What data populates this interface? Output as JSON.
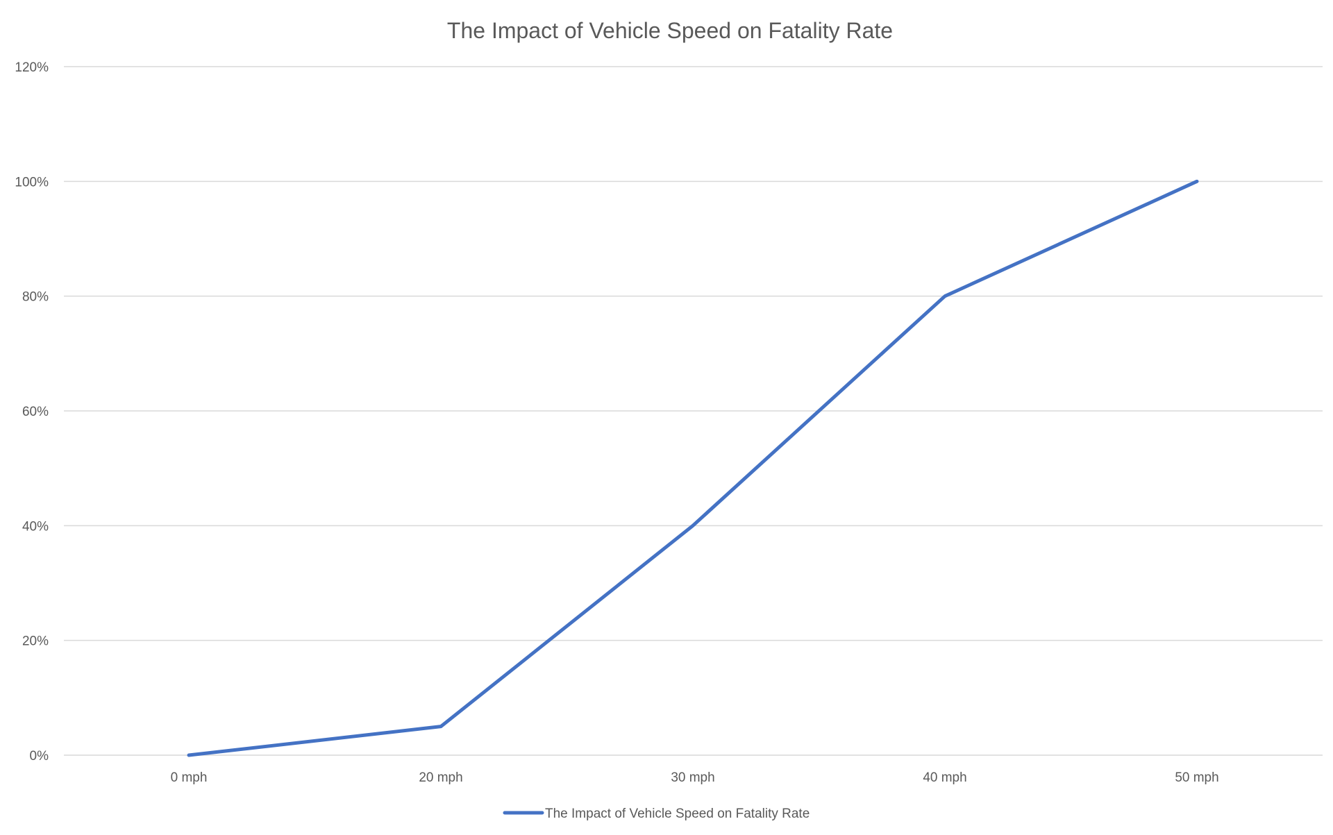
{
  "chart_data": {
    "type": "line",
    "title": "The Impact of Vehicle Speed on Fatality Rate",
    "xlabel": "",
    "ylabel": "",
    "categories": [
      "0 mph",
      "20 mph",
      "30 mph",
      "40 mph",
      "50 mph"
    ],
    "series": [
      {
        "name": "The Impact of Vehicle Speed on Fatality Rate",
        "values": [
          0,
          5,
          40,
          80,
          100
        ],
        "color": "#4472c4"
      }
    ],
    "ylim": [
      0,
      120
    ],
    "yticks": [
      0,
      20,
      40,
      60,
      80,
      100,
      120
    ],
    "ytick_labels": [
      "0%",
      "20%",
      "40%",
      "60%",
      "80%",
      "100%",
      "120%"
    ],
    "grid": "horizontal",
    "legend_position": "bottom",
    "gridline_color": "#d9d9d9",
    "text_color": "#595959"
  }
}
